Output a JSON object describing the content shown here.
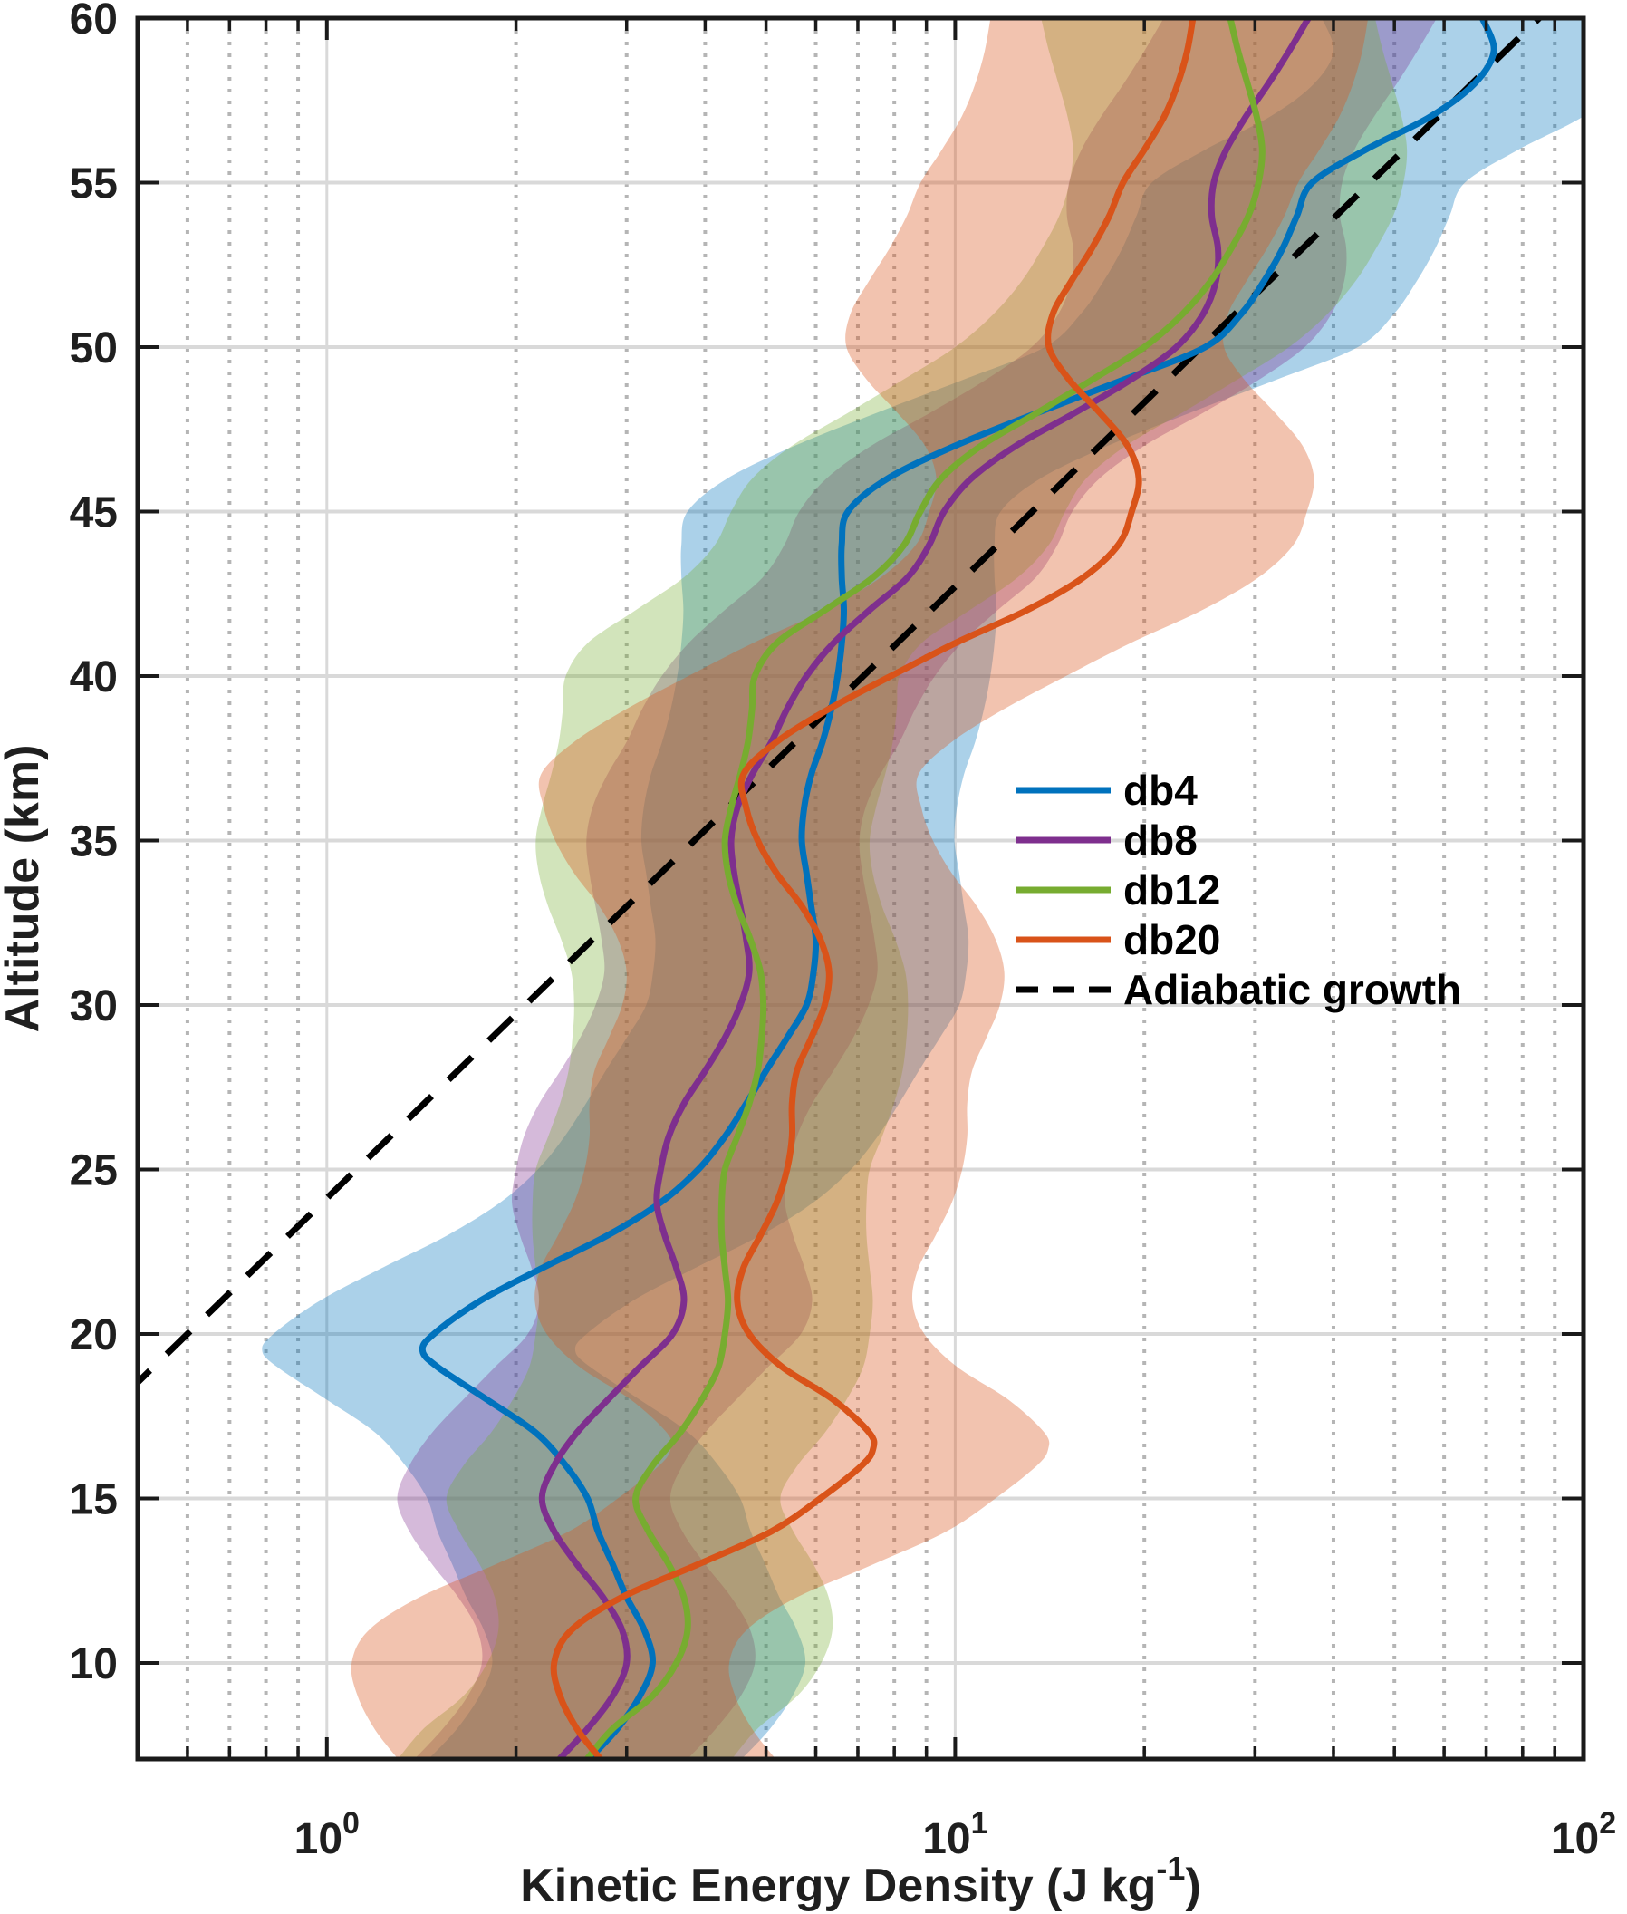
{
  "chart_data": {
    "type": "line",
    "title": "",
    "xlabel_parts": {
      "pre": "Kinetic Energy Density (J kg",
      "sup": "-1",
      "post": ")"
    },
    "ylabel": "Altitude (km)",
    "background": "#ffffff",
    "axis_color": "#1a1a1a",
    "tick_label_color": "#1f1f1f",
    "grid_major_color": "#d9d9d9",
    "grid_minor_color": "#b5b5b5",
    "x_axis": {
      "scale": "log",
      "min": 0.5,
      "max": 100,
      "major_ticks": [
        {
          "value": 1,
          "label_base": "10",
          "label_exp": "0"
        },
        {
          "value": 10,
          "label_base": "10",
          "label_exp": "1"
        },
        {
          "value": 100,
          "label_base": "10",
          "label_exp": "2"
        }
      ],
      "minor_ticks": [
        0.6,
        0.7,
        0.8,
        0.9,
        2,
        3,
        4,
        5,
        6,
        7,
        8,
        9,
        20,
        30,
        40,
        50,
        60,
        70,
        80,
        90
      ]
    },
    "y_axis": {
      "min": 7.08,
      "max": 60,
      "major_ticks": [
        10,
        15,
        20,
        25,
        30,
        35,
        40,
        45,
        50,
        55,
        60
      ]
    },
    "legend_position": "middle-right",
    "series": [
      {
        "name": "db4",
        "color": "#0072BD",
        "band_factor_lo": 1.8,
        "band_factor_hi": 1.75,
        "band_alpha": 0.33,
        "points": [
          [
            7.1,
            2.62
          ],
          [
            8,
            2.9
          ],
          [
            9,
            3.15
          ],
          [
            10,
            3.3
          ],
          [
            11,
            3.2
          ],
          [
            12,
            3.0
          ],
          [
            13,
            2.85
          ],
          [
            14,
            2.7
          ],
          [
            15,
            2.6
          ],
          [
            16,
            2.4
          ],
          [
            17,
            2.15
          ],
          [
            18,
            1.8
          ],
          [
            19,
            1.5
          ],
          [
            19.5,
            1.42
          ],
          [
            20,
            1.48
          ],
          [
            21,
            1.75
          ],
          [
            22,
            2.2
          ],
          [
            23,
            2.8
          ],
          [
            24,
            3.4
          ],
          [
            25,
            3.9
          ],
          [
            26,
            4.3
          ],
          [
            27,
            4.65
          ],
          [
            28,
            5.0
          ],
          [
            29,
            5.4
          ],
          [
            30,
            5.8
          ],
          [
            31,
            5.95
          ],
          [
            32,
            6.0
          ],
          [
            33,
            5.9
          ],
          [
            34,
            5.8
          ],
          [
            35,
            5.7
          ],
          [
            36,
            5.75
          ],
          [
            37,
            5.9
          ],
          [
            38,
            6.15
          ],
          [
            39,
            6.35
          ],
          [
            40,
            6.5
          ],
          [
            41,
            6.6
          ],
          [
            42,
            6.65
          ],
          [
            43,
            6.6
          ],
          [
            44,
            6.6
          ],
          [
            45,
            6.75
          ],
          [
            46,
            7.8
          ],
          [
            47,
            10.0
          ],
          [
            48,
            13.5
          ],
          [
            49,
            18.5
          ],
          [
            50,
            25.0
          ],
          [
            51,
            28.5
          ],
          [
            52,
            31.0
          ],
          [
            53,
            33.2
          ],
          [
            54,
            35.0
          ],
          [
            55,
            37.0
          ],
          [
            56,
            45.0
          ],
          [
            57,
            57.0
          ],
          [
            58,
            67.0
          ],
          [
            59,
            72.0
          ],
          [
            60,
            69.0
          ]
        ]
      },
      {
        "name": "db8",
        "color": "#7E2F8E",
        "band_factor_lo": 1.7,
        "band_factor_hi": 1.6,
        "band_alpha": 0.33,
        "points": [
          [
            7.1,
            2.35
          ],
          [
            8,
            2.6
          ],
          [
            9,
            2.85
          ],
          [
            10,
            3.0
          ],
          [
            11,
            2.95
          ],
          [
            12,
            2.75
          ],
          [
            13,
            2.5
          ],
          [
            14,
            2.3
          ],
          [
            15,
            2.2
          ],
          [
            16,
            2.3
          ],
          [
            17,
            2.5
          ],
          [
            18,
            2.8
          ],
          [
            19,
            3.15
          ],
          [
            20,
            3.55
          ],
          [
            21,
            3.7
          ],
          [
            22,
            3.6
          ],
          [
            23,
            3.45
          ],
          [
            24,
            3.35
          ],
          [
            25,
            3.4
          ],
          [
            26,
            3.5
          ],
          [
            27,
            3.7
          ],
          [
            28,
            4.0
          ],
          [
            29,
            4.3
          ],
          [
            30,
            4.55
          ],
          [
            31,
            4.7
          ],
          [
            32,
            4.65
          ],
          [
            33,
            4.55
          ],
          [
            34,
            4.45
          ],
          [
            35,
            4.4
          ],
          [
            36,
            4.5
          ],
          [
            37,
            4.75
          ],
          [
            38,
            5.1
          ],
          [
            39,
            5.4
          ],
          [
            40,
            5.8
          ],
          [
            41,
            6.4
          ],
          [
            42,
            7.3
          ],
          [
            43,
            8.4
          ],
          [
            44,
            9.1
          ],
          [
            45,
            9.6
          ],
          [
            46,
            10.6
          ],
          [
            47,
            12.5
          ],
          [
            48,
            15.5
          ],
          [
            49,
            19.0
          ],
          [
            50,
            22.5
          ],
          [
            51,
            24.8
          ],
          [
            52,
            26.0
          ],
          [
            53,
            26.2
          ],
          [
            54,
            25.6
          ],
          [
            55,
            25.8
          ],
          [
            56,
            27.0
          ],
          [
            57,
            29.0
          ],
          [
            58,
            31.5
          ],
          [
            59,
            34.0
          ],
          [
            60,
            36.5
          ]
        ]
      },
      {
        "name": "db12",
        "color": "#77AC30",
        "band_factor_lo": 2.0,
        "band_factor_hi": 1.7,
        "band_alpha": 0.33,
        "points": [
          [
            7.1,
            2.6
          ],
          [
            8,
            2.85
          ],
          [
            9,
            3.3
          ],
          [
            10,
            3.6
          ],
          [
            11,
            3.75
          ],
          [
            12,
            3.7
          ],
          [
            13,
            3.5
          ],
          [
            14,
            3.25
          ],
          [
            15,
            3.1
          ],
          [
            16,
            3.3
          ],
          [
            17,
            3.65
          ],
          [
            18,
            3.95
          ],
          [
            19,
            4.2
          ],
          [
            20,
            4.3
          ],
          [
            21,
            4.35
          ],
          [
            22,
            4.3
          ],
          [
            23,
            4.25
          ],
          [
            24,
            4.25
          ],
          [
            25,
            4.3
          ],
          [
            26,
            4.5
          ],
          [
            27,
            4.7
          ],
          [
            28,
            4.85
          ],
          [
            29,
            4.92
          ],
          [
            30,
            4.95
          ],
          [
            31,
            4.9
          ],
          [
            32,
            4.72
          ],
          [
            33,
            4.5
          ],
          [
            34,
            4.35
          ],
          [
            35,
            4.3
          ],
          [
            36,
            4.4
          ],
          [
            37,
            4.55
          ],
          [
            38,
            4.68
          ],
          [
            39,
            4.75
          ],
          [
            40,
            4.8
          ],
          [
            41,
            5.2
          ],
          [
            42,
            6.2
          ],
          [
            43,
            7.4
          ],
          [
            44,
            8.3
          ],
          [
            45,
            8.8
          ],
          [
            46,
            9.5
          ],
          [
            47,
            11.0
          ],
          [
            48,
            13.5
          ],
          [
            49,
            16.5
          ],
          [
            50,
            20.0
          ],
          [
            51,
            23.0
          ],
          [
            52,
            25.5
          ],
          [
            53,
            27.5
          ],
          [
            54,
            29.3
          ],
          [
            55,
            30.4
          ],
          [
            56,
            30.8
          ],
          [
            57,
            30.2
          ],
          [
            58,
            29.2
          ],
          [
            59,
            28.2
          ],
          [
            60,
            27.4
          ]
        ]
      },
      {
        "name": "db20",
        "color": "#D95319",
        "band_factor_lo": 2.1,
        "band_factor_hi": 1.9,
        "band_alpha": 0.35,
        "points": [
          [
            7.1,
            2.72
          ],
          [
            8,
            2.5
          ],
          [
            9,
            2.35
          ],
          [
            10,
            2.3
          ],
          [
            11,
            2.45
          ],
          [
            12,
            2.95
          ],
          [
            13,
            3.9
          ],
          [
            14,
            5.1
          ],
          [
            15,
            6.1
          ],
          [
            16,
            7.1
          ],
          [
            16.5,
            7.4
          ],
          [
            17,
            7.3
          ],
          [
            18,
            6.4
          ],
          [
            19,
            5.3
          ],
          [
            20,
            4.7
          ],
          [
            21,
            4.5
          ],
          [
            22,
            4.6
          ],
          [
            23,
            4.9
          ],
          [
            24,
            5.2
          ],
          [
            25,
            5.4
          ],
          [
            26,
            5.5
          ],
          [
            27,
            5.5
          ],
          [
            28,
            5.6
          ],
          [
            29,
            5.9
          ],
          [
            30,
            6.2
          ],
          [
            31,
            6.3
          ],
          [
            32,
            6.1
          ],
          [
            33,
            5.7
          ],
          [
            34,
            5.2
          ],
          [
            35,
            4.85
          ],
          [
            36,
            4.65
          ],
          [
            37,
            4.6
          ],
          [
            38,
            5.2
          ],
          [
            39,
            6.3
          ],
          [
            40,
            7.9
          ],
          [
            41,
            10.0
          ],
          [
            42,
            13.0
          ],
          [
            43,
            16.0
          ],
          [
            44,
            18.2
          ],
          [
            45,
            19.1
          ],
          [
            46,
            19.6
          ],
          [
            47,
            18.8
          ],
          [
            48,
            17.0
          ],
          [
            49,
            15.2
          ],
          [
            50,
            14.1
          ],
          [
            51,
            14.3
          ],
          [
            52,
            15.3
          ],
          [
            53,
            16.5
          ],
          [
            54,
            17.6
          ],
          [
            55,
            18.5
          ],
          [
            56,
            20.0
          ],
          [
            57,
            21.5
          ],
          [
            58,
            22.6
          ],
          [
            59,
            23.4
          ],
          [
            60,
            23.9
          ]
        ]
      }
    ],
    "reference_line": {
      "name": "Adiabatic growth",
      "color": "#000000",
      "style": "dashed",
      "points": [
        [
          18.2,
          0.48
        ],
        [
          60,
          85
        ]
      ]
    }
  }
}
